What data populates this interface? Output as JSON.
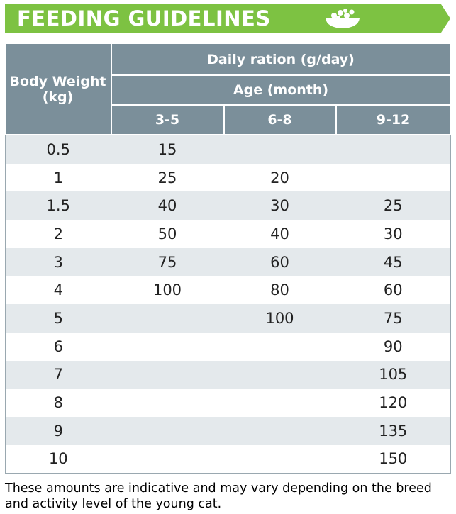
{
  "header": {
    "title": "FEEDING GUIDELINES"
  },
  "table": {
    "row_header": "Body Weight (kg)",
    "group_header": "Daily ration (g/day)",
    "sub_header": "Age (month)",
    "columns": [
      "3-5",
      "6-8",
      "9-12"
    ],
    "rows": [
      [
        "0.5",
        "15",
        null,
        null
      ],
      [
        "1",
        "25",
        "20",
        null
      ],
      [
        "1.5",
        "40",
        "30",
        "25"
      ],
      [
        "2",
        "50",
        "40",
        "30"
      ],
      [
        "3",
        "75",
        "60",
        "45"
      ],
      [
        "4",
        "100",
        "80",
        "60"
      ],
      [
        "5",
        null,
        "100",
        "75"
      ],
      [
        "6",
        null,
        null,
        "90"
      ],
      [
        "7",
        null,
        null,
        "105"
      ],
      [
        "8",
        null,
        null,
        "120"
      ],
      [
        "9",
        null,
        null,
        "135"
      ],
      [
        "10",
        null,
        null,
        "150"
      ]
    ]
  },
  "footer": {
    "note": "These amounts are indicative and may vary depending on the breed and activity level of the young cat."
  }
}
